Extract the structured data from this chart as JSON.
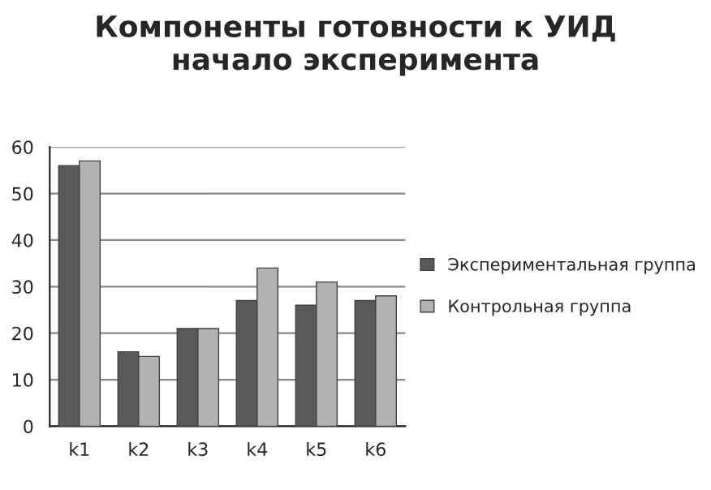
{
  "chart_data": {
    "type": "bar",
    "title": "Компоненты готовности к УИД\nначало эксперимента",
    "categories": [
      "k1",
      "k2",
      "k3",
      "k4",
      "k5",
      "k6"
    ],
    "series": [
      {
        "name": "Экспериментальная группа",
        "color": "#595959",
        "values": [
          56,
          16,
          21,
          27,
          26,
          27
        ]
      },
      {
        "name": "Контрольная группа",
        "color": "#b2b2b2",
        "values": [
          57,
          15,
          21,
          34,
          31,
          28
        ]
      }
    ],
    "ylim": [
      0,
      60
    ],
    "yticks": [
      0,
      10,
      20,
      30,
      40,
      50,
      60
    ],
    "grid": "y",
    "legend": "right"
  }
}
